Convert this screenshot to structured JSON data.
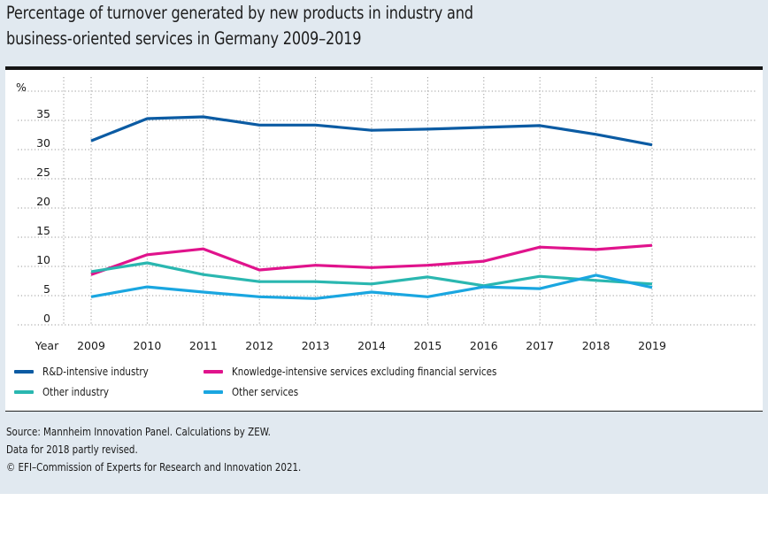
{
  "title_lines": [
    "Percentage of turnover generated by new products in industry and",
    "business-oriented services in Germany 2009–2019"
  ],
  "chart_data": {
    "type": "line",
    "title": "Percentage of turnover generated by new products in industry and business-oriented services in Germany 2009–2019",
    "xlabel": "Year",
    "ylabel": "%",
    "x": [
      "2009",
      "2010",
      "2011",
      "2012",
      "2013",
      "2014",
      "2015",
      "2016",
      "2017",
      "2018",
      "2019"
    ],
    "yticks": [
      "0",
      "5",
      "10",
      "15",
      "20",
      "25",
      "30",
      "35"
    ],
    "ylim": [
      0,
      40
    ],
    "grid": true,
    "legend_position": "bottom",
    "series": [
      {
        "name": "R&D-intensive industry",
        "color": "#0b5ba3",
        "values": [
          31.5,
          35.3,
          35.6,
          34.2,
          34.2,
          33.3,
          33.5,
          33.8,
          34.1,
          32.6,
          30.8
        ]
      },
      {
        "name": "Knowledge-intensive services excluding financial services",
        "color": "#e0138c",
        "values": [
          8.6,
          12.0,
          13.0,
          9.4,
          10.2,
          9.8,
          10.2,
          10.9,
          13.3,
          12.9,
          13.6
        ]
      },
      {
        "name": "Other industry",
        "color": "#2ab7b0",
        "values": [
          9.1,
          10.6,
          8.6,
          7.4,
          7.4,
          7.0,
          8.2,
          6.7,
          8.3,
          7.6,
          7.0
        ]
      },
      {
        "name": "Other services",
        "color": "#1aa6e0",
        "values": [
          4.8,
          6.5,
          5.6,
          4.8,
          4.5,
          5.6,
          4.8,
          6.5,
          6.2,
          8.5,
          6.4
        ]
      }
    ]
  },
  "legend": [
    {
      "label": "R&D-intensive industry",
      "color": "#0b5ba3"
    },
    {
      "label": "Knowledge-intensive services excluding financial services",
      "color": "#e0138c"
    },
    {
      "label": "Other industry",
      "color": "#2ab7b0"
    },
    {
      "label": "Other services",
      "color": "#1aa6e0"
    }
  ],
  "source_lines": [
    "Source: Mannheim Innovation Panel. Calculations by ZEW.",
    "Data for 2018 partly revised.",
    "© EFI–Commission of Experts for Research and Innovation 2021."
  ]
}
